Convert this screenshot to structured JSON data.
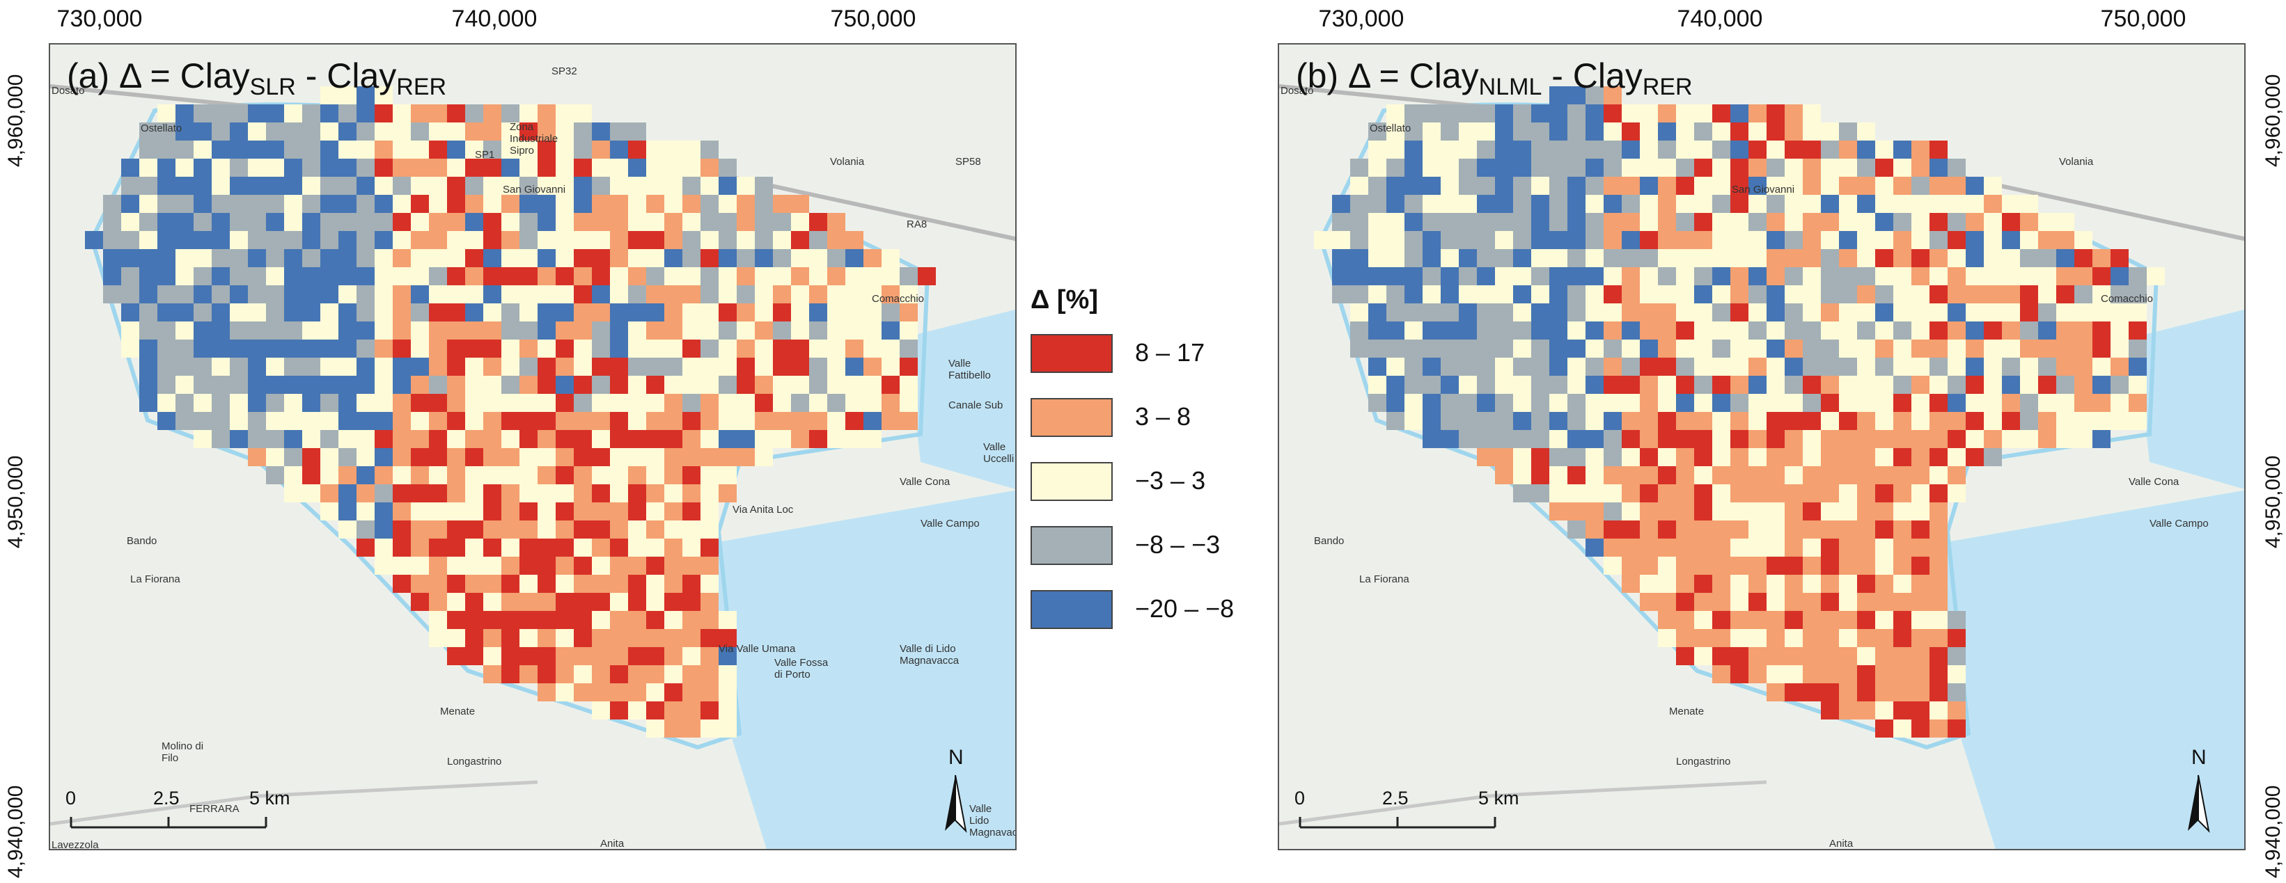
{
  "legend": {
    "title": "Δ [%]",
    "items": [
      {
        "label": "8 – 17",
        "color": "#d73027"
      },
      {
        "label": "3 – 8",
        "color": "#f4a070"
      },
      {
        "label": "−3 – 3",
        "color": "#fefbd8"
      },
      {
        "label": "−8 – −3",
        "color": "#a4b0b6"
      },
      {
        "label": "−20 – −8",
        "color": "#4575b4"
      }
    ]
  },
  "x_ticks": [
    "730,000",
    "740,000",
    "750,000"
  ],
  "y_ticks": [
    "4,960,000",
    "4,950,000",
    "4,940,000"
  ],
  "scale": {
    "labels": [
      "0",
      "2.5",
      "5 km"
    ]
  },
  "north_label": "N",
  "place_names": [
    "Dosato",
    "Ostellato",
    "Zona Industriale Sipro",
    "San Giovanni",
    "Volania",
    "Comacchio",
    "Valle Fattibello",
    "Canale Sub",
    "Valle Uccelli",
    "Valle Cona",
    "Valle Campo",
    "Bando",
    "La Fiorana",
    "Valle Fossa di Porto",
    "Valle di Lido Magnavacca",
    "Menate",
    "Molino di Filo",
    "Longastrino",
    "FERRARA",
    "Anita",
    "Valle Lido Magnavacca",
    "Lavezzola",
    "SP32",
    "SP1",
    "SP58",
    "RA8",
    "Via Anita Loc",
    "Via Valle Umana"
  ],
  "panels": [
    {
      "id": "a",
      "title_prefix": "(a) Δ = Clay",
      "title_sub1": "SLR",
      "title_mid": " - Clay",
      "title_sub2": "RER"
    },
    {
      "id": "b",
      "title_prefix": "(b) Δ = Clay",
      "title_sub1": "NLML",
      "title_mid": " - Clay",
      "title_sub2": "RER"
    }
  ]
}
